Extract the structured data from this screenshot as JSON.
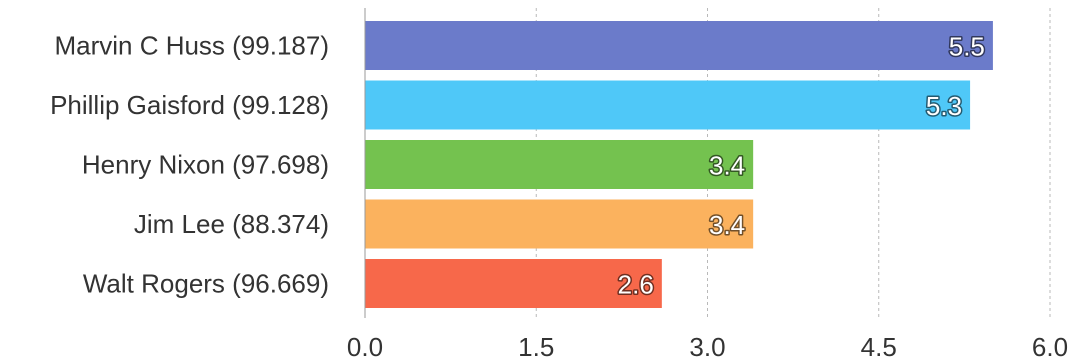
{
  "chart_data": {
    "type": "bar",
    "orientation": "horizontal",
    "categories": [
      "Marvin C Huss (99.187)",
      "Phillip Gaisford (99.128)",
      "Henry Nixon (97.698)",
      "Jim Lee (88.374)",
      "Walt Rogers (96.669)"
    ],
    "values": [
      5.5,
      5.3,
      3.4,
      3.4,
      2.6
    ],
    "value_labels": [
      "5.5",
      "5.3",
      "3.4",
      "3.4",
      "2.6"
    ],
    "colors": [
      "#6b7bca",
      "#4fc8f8",
      "#74c24f",
      "#fbb25e",
      "#f7684a"
    ],
    "xlim": [
      0,
      6
    ],
    "xticks": [
      0,
      1.5,
      3,
      4.5,
      6
    ],
    "xtick_labels": [
      "0.0",
      "1.5",
      "3.0",
      "4.5",
      "6.0"
    ],
    "grid": "vertical-dashed",
    "title": "",
    "xlabel": "",
    "ylabel": ""
  }
}
